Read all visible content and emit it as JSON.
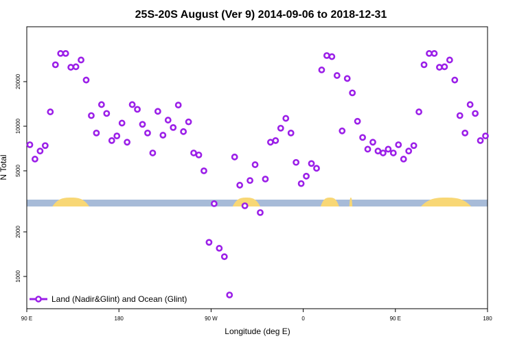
{
  "chart_data": {
    "type": "scatter",
    "title": "25S-20S August (Ver 9)   2014-09-06 to 2018-12-31",
    "xlabel": "Longitude (deg E)",
    "ylabel": "N Total",
    "x_ticks": [
      {
        "value": 90,
        "label": "90 E"
      },
      {
        "value": 180,
        "label": "180"
      },
      {
        "value": 270,
        "label": "90 W"
      },
      {
        "value": 360,
        "label": "0"
      },
      {
        "value": 450,
        "label": "90 E"
      },
      {
        "value": 540,
        "label": "180"
      }
    ],
    "xlim": [
      90,
      540
    ],
    "y_ticks": [
      {
        "value": 1000,
        "label": "1000"
      },
      {
        "value": 2000,
        "label": "2000"
      },
      {
        "value": 5000,
        "label": "5000"
      },
      {
        "value": 10000,
        "label": "10000"
      },
      {
        "value": 20000,
        "label": "20000"
      }
    ],
    "y_scale": "log with band break between 2500 and 3500",
    "ylim": [
      500,
      35000
    ],
    "grid": false,
    "legend": {
      "position": "bottom-left",
      "label": "Land (Nadir&Glint) and Ocean (Glint)"
    },
    "colors": {
      "points": "#9b1fe8",
      "ocean": "#a7bbd8",
      "land": "#f8d775"
    },
    "land_mask_intervals": [
      [
        115,
        151
      ],
      [
        291,
        318
      ],
      [
        377,
        395
      ],
      [
        405,
        408
      ],
      [
        475,
        524
      ]
    ],
    "series": [
      {
        "name": "Land (Nadir&Glint) and Ocean (Glint)",
        "points": [
          [
            93,
            7500
          ],
          [
            98,
            6000
          ],
          [
            103,
            6800
          ],
          [
            108,
            7400
          ],
          [
            113,
            12500
          ],
          [
            118,
            26000
          ],
          [
            123,
            31000
          ],
          [
            128,
            31000
          ],
          [
            133,
            25000
          ],
          [
            138,
            25200
          ],
          [
            143,
            28000
          ],
          [
            148,
            20500
          ],
          [
            153,
            11800
          ],
          [
            158,
            9000
          ],
          [
            163,
            14000
          ],
          [
            168,
            12200
          ],
          [
            173,
            8000
          ],
          [
            178,
            8600
          ],
          [
            183,
            10500
          ],
          [
            188,
            7800
          ],
          [
            193,
            14000
          ],
          [
            198,
            13000
          ],
          [
            203,
            10300
          ],
          [
            208,
            9000
          ],
          [
            213,
            6600
          ],
          [
            218,
            12600
          ],
          [
            223,
            8700
          ],
          [
            228,
            11000
          ],
          [
            233,
            9800
          ],
          [
            238,
            13900
          ],
          [
            243,
            9200
          ],
          [
            248,
            10700
          ],
          [
            253,
            6600
          ],
          [
            258,
            6400
          ],
          [
            263,
            5000
          ],
          [
            268,
            1700
          ],
          [
            273,
            3100
          ],
          [
            278,
            1550
          ],
          [
            283,
            1360
          ],
          [
            288,
            750
          ],
          [
            293,
            6200
          ],
          [
            298,
            4000
          ],
          [
            303,
            3000
          ],
          [
            308,
            4300
          ],
          [
            313,
            5500
          ],
          [
            318,
            2700
          ],
          [
            323,
            4400
          ],
          [
            328,
            7800
          ],
          [
            333,
            8000
          ],
          [
            338,
            9700
          ],
          [
            343,
            11300
          ],
          [
            348,
            9000
          ],
          [
            353,
            5700
          ],
          [
            358,
            4100
          ],
          [
            363,
            4600
          ],
          [
            368,
            5600
          ],
          [
            373,
            5200
          ],
          [
            378,
            24000
          ],
          [
            383,
            30000
          ],
          [
            388,
            29500
          ],
          [
            393,
            22000
          ],
          [
            398,
            9300
          ],
          [
            403,
            21000
          ],
          [
            408,
            16800
          ],
          [
            413,
            10800
          ],
          [
            418,
            8400
          ],
          [
            423,
            7000
          ],
          [
            428,
            7800
          ],
          [
            433,
            6800
          ],
          [
            438,
            6600
          ],
          [
            443,
            7000
          ],
          [
            448,
            6600
          ],
          [
            453,
            7500
          ],
          [
            458,
            6000
          ],
          [
            463,
            6800
          ],
          [
            468,
            7400
          ],
          [
            473,
            12500
          ],
          [
            478,
            26000
          ],
          [
            483,
            31000
          ],
          [
            488,
            31000
          ],
          [
            493,
            25000
          ],
          [
            498,
            25200
          ],
          [
            503,
            28000
          ],
          [
            508,
            20500
          ],
          [
            513,
            11800
          ],
          [
            518,
            9000
          ],
          [
            523,
            14000
          ],
          [
            528,
            12200
          ],
          [
            533,
            8000
          ],
          [
            538,
            8600
          ]
        ]
      }
    ]
  }
}
